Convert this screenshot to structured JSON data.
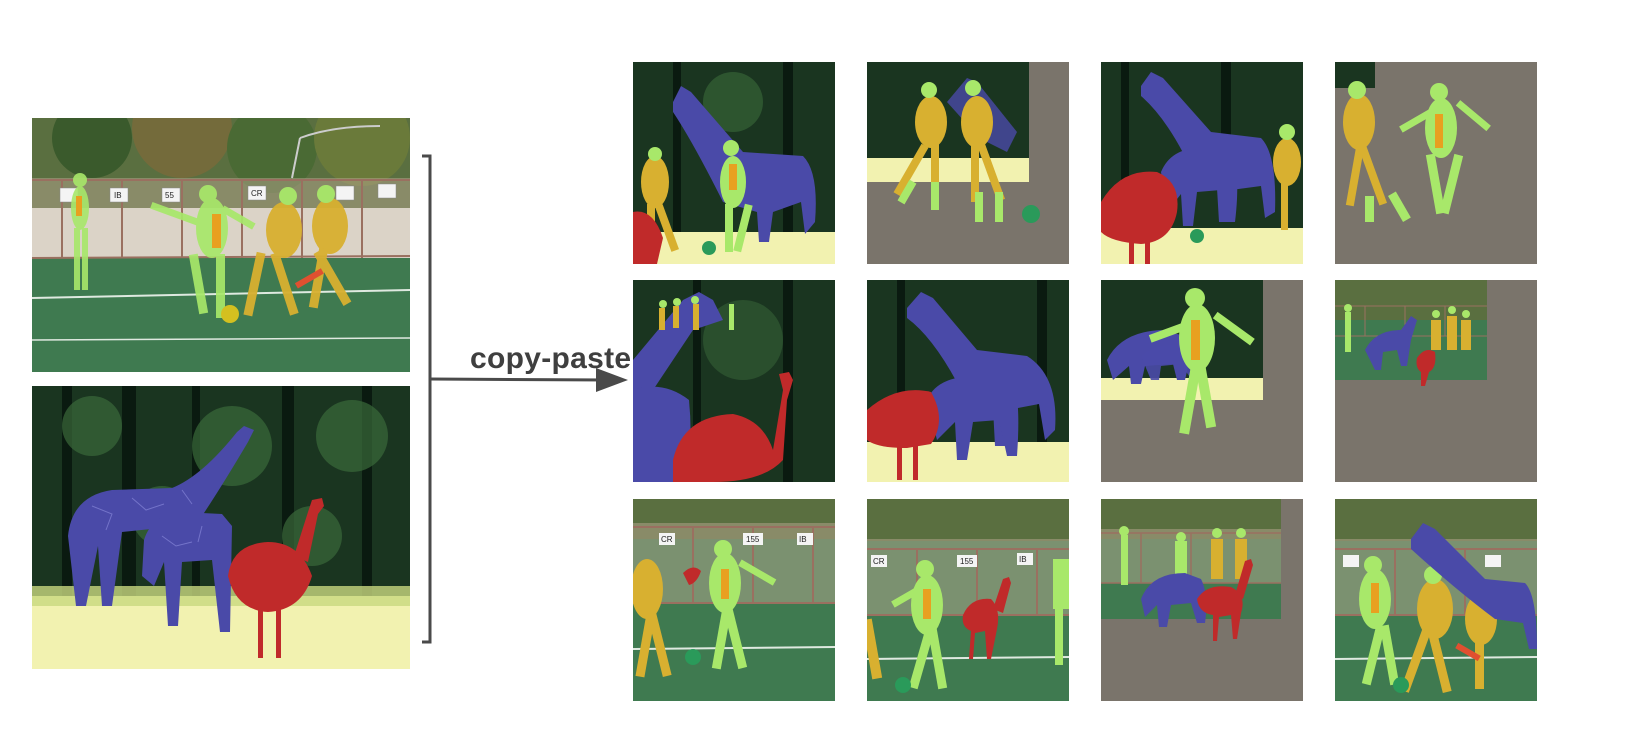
{
  "arrow_label": "copy-paste",
  "colors": {
    "person_lime": "#a8e86a",
    "person_orange": "#e8a020",
    "giraffe": "#4a4aa8",
    "ostrich": "#c02a2a",
    "ball": "#2a9a5a",
    "grass": "#3f7a50",
    "field_lines": "#dfe9e0",
    "fence": "#9a7060",
    "tree_dark": "#14301a",
    "sky_trees": "#6a8a4a",
    "pad": "#7a746b",
    "bracket": "#4a4a4a"
  },
  "sources": [
    {
      "name": "soccer-image",
      "scene": "soccer",
      "signs": [
        "",
        "IB",
        "55",
        "CR",
        "",
        ""
      ]
    },
    {
      "name": "wildlife-image",
      "scene": "wildlife"
    }
  ],
  "outputs": [
    {
      "name": "output-1",
      "scene": "forest",
      "objects": [
        "giraffe-big",
        "person-orange",
        "person-lime",
        "ostrich-small"
      ]
    },
    {
      "name": "output-2",
      "scene": "pad-corner",
      "objects": [
        "person-orange",
        "person-lime",
        "ball"
      ]
    },
    {
      "name": "output-3",
      "scene": "forest",
      "objects": [
        "giraffe-big",
        "giraffe-small",
        "ostrich",
        "person-orange"
      ]
    },
    {
      "name": "output-4",
      "scene": "pad",
      "objects": [
        "person-orange",
        "person-lime"
      ]
    },
    {
      "name": "output-5",
      "scene": "forest",
      "objects": [
        "giraffe-head",
        "ostrich"
      ]
    },
    {
      "name": "output-6",
      "scene": "forest",
      "objects": [
        "giraffe-big",
        "giraffe-small",
        "ostrich"
      ]
    },
    {
      "name": "output-7",
      "scene": "pad-forest",
      "objects": [
        "giraffe-small",
        "person-lime"
      ]
    },
    {
      "name": "output-8",
      "scene": "pad-soccer",
      "objects": [
        "people-small",
        "giraffe-tiny",
        "ostrich-tiny"
      ]
    },
    {
      "name": "output-9",
      "scene": "soccer",
      "signs": [
        "CR",
        "",
        "155",
        "IB"
      ],
      "objects": [
        "person-orange",
        "person-lime"
      ]
    },
    {
      "name": "output-10",
      "scene": "soccer",
      "signs": [
        "CR",
        "",
        "155",
        "IB"
      ],
      "objects": [
        "person-lime",
        "ostrich",
        "person-lime-edge"
      ]
    },
    {
      "name": "output-11",
      "scene": "pad-soccer",
      "objects": [
        "giraffe-small",
        "ostrich",
        "people-small"
      ]
    },
    {
      "name": "output-12",
      "scene": "soccer",
      "objects": [
        "person-lime",
        "person-orange",
        "giraffe-big"
      ]
    }
  ]
}
